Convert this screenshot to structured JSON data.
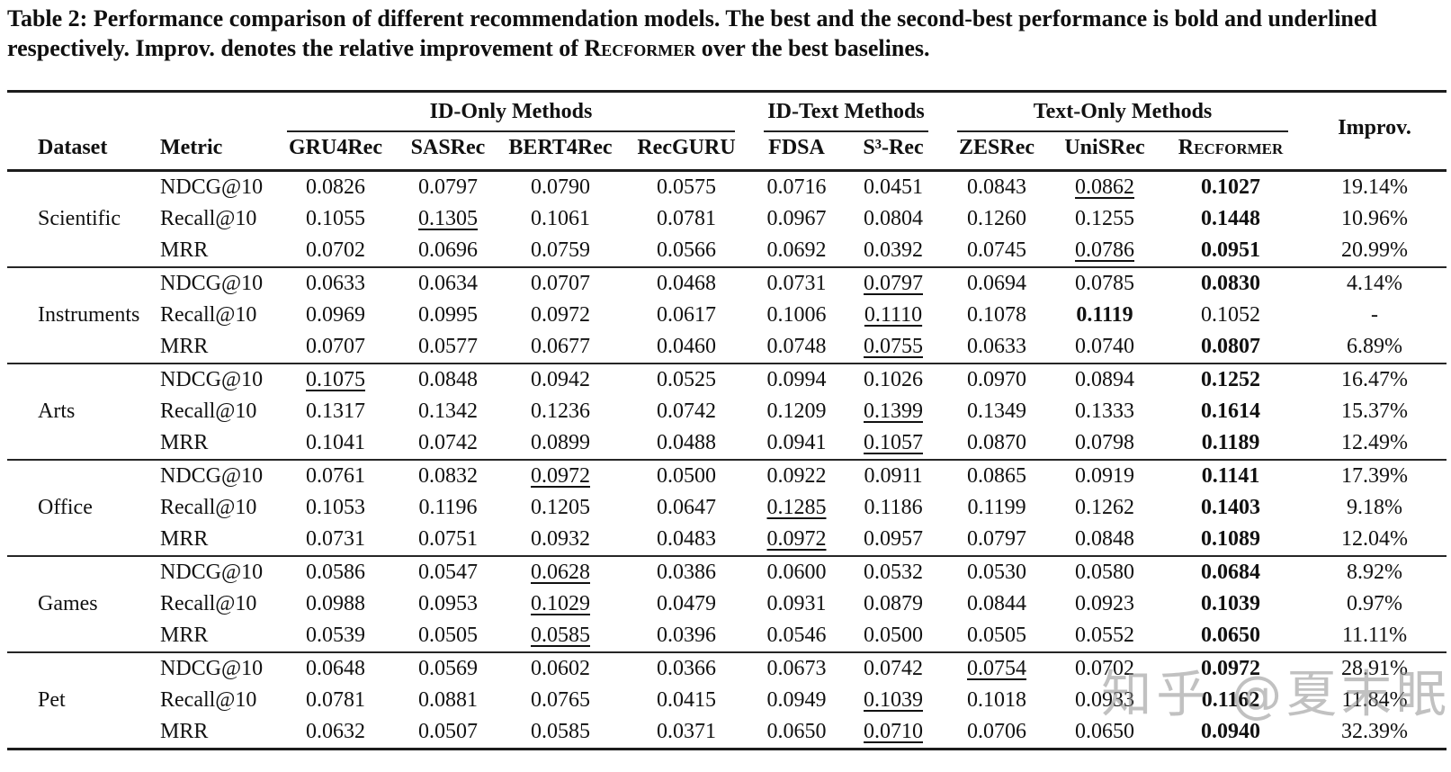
{
  "caption": {
    "prefix": "Table 2: Performance comparison of different recommendation models. The best and the second-best performance is bold and underlined respectively. Improv. denotes the relative improvement of ",
    "model_name": "Recformer",
    "suffix": " over the best baselines."
  },
  "watermark": "知乎 @夏末眠",
  "table": {
    "corner_headers": [
      "Dataset",
      "Metric"
    ],
    "groups": [
      {
        "label": "ID-Only Methods",
        "span": 4
      },
      {
        "label": "ID-Text Methods",
        "span": 2
      },
      {
        "label": "Text-Only Methods",
        "span": 3
      }
    ],
    "improv_header": "Improv.",
    "methods": [
      "GRU4Rec",
      "SASRec",
      "BERT4Rec",
      "RecGURU",
      "FDSA",
      "S³-Rec",
      "ZESRec",
      "UniSRec",
      "Recformer"
    ],
    "sections": [
      {
        "dataset": "Scientific",
        "rows": [
          {
            "metric": "NDCG@10",
            "values": [
              "0.0826",
              "0.0797",
              "0.0790",
              "0.0575",
              "0.0716",
              "0.0451",
              "0.0843",
              "0.0862",
              "0.1027"
            ],
            "improv": "19.14%",
            "best": 8,
            "second": 7
          },
          {
            "metric": "Recall@10",
            "values": [
              "0.1055",
              "0.1305",
              "0.1061",
              "0.0781",
              "0.0967",
              "0.0804",
              "0.1260",
              "0.1255",
              "0.1448"
            ],
            "improv": "10.96%",
            "best": 8,
            "second": 1
          },
          {
            "metric": "MRR",
            "values": [
              "0.0702",
              "0.0696",
              "0.0759",
              "0.0566",
              "0.0692",
              "0.0392",
              "0.0745",
              "0.0786",
              "0.0951"
            ],
            "improv": "20.99%",
            "best": 8,
            "second": 7
          }
        ]
      },
      {
        "dataset": "Instruments",
        "rows": [
          {
            "metric": "NDCG@10",
            "values": [
              "0.0633",
              "0.0634",
              "0.0707",
              "0.0468",
              "0.0731",
              "0.0797",
              "0.0694",
              "0.0785",
              "0.0830"
            ],
            "improv": "4.14%",
            "best": 8,
            "second": 5
          },
          {
            "metric": "Recall@10",
            "values": [
              "0.0969",
              "0.0995",
              "0.0972",
              "0.0617",
              "0.1006",
              "0.1110",
              "0.1078",
              "0.1119",
              "0.1052"
            ],
            "improv": "-",
            "best": 7,
            "second": 5
          },
          {
            "metric": "MRR",
            "values": [
              "0.0707",
              "0.0577",
              "0.0677",
              "0.0460",
              "0.0748",
              "0.0755",
              "0.0633",
              "0.0740",
              "0.0807"
            ],
            "improv": "6.89%",
            "best": 8,
            "second": 5
          }
        ]
      },
      {
        "dataset": "Arts",
        "rows": [
          {
            "metric": "NDCG@10",
            "values": [
              "0.1075",
              "0.0848",
              "0.0942",
              "0.0525",
              "0.0994",
              "0.1026",
              "0.0970",
              "0.0894",
              "0.1252"
            ],
            "improv": "16.47%",
            "best": 8,
            "second": 0
          },
          {
            "metric": "Recall@10",
            "values": [
              "0.1317",
              "0.1342",
              "0.1236",
              "0.0742",
              "0.1209",
              "0.1399",
              "0.1349",
              "0.1333",
              "0.1614"
            ],
            "improv": "15.37%",
            "best": 8,
            "second": 5
          },
          {
            "metric": "MRR",
            "values": [
              "0.1041",
              "0.0742",
              "0.0899",
              "0.0488",
              "0.0941",
              "0.1057",
              "0.0870",
              "0.0798",
              "0.1189"
            ],
            "improv": "12.49%",
            "best": 8,
            "second": 5
          }
        ]
      },
      {
        "dataset": "Office",
        "rows": [
          {
            "metric": "NDCG@10",
            "values": [
              "0.0761",
              "0.0832",
              "0.0972",
              "0.0500",
              "0.0922",
              "0.0911",
              "0.0865",
              "0.0919",
              "0.1141"
            ],
            "improv": "17.39%",
            "best": 8,
            "second": 2
          },
          {
            "metric": "Recall@10",
            "values": [
              "0.1053",
              "0.1196",
              "0.1205",
              "0.0647",
              "0.1285",
              "0.1186",
              "0.1199",
              "0.1262",
              "0.1403"
            ],
            "improv": "9.18%",
            "best": 8,
            "second": 4
          },
          {
            "metric": "MRR",
            "values": [
              "0.0731",
              "0.0751",
              "0.0932",
              "0.0483",
              "0.0972",
              "0.0957",
              "0.0797",
              "0.0848",
              "0.1089"
            ],
            "improv": "12.04%",
            "best": 8,
            "second": 4
          }
        ]
      },
      {
        "dataset": "Games",
        "rows": [
          {
            "metric": "NDCG@10",
            "values": [
              "0.0586",
              "0.0547",
              "0.0628",
              "0.0386",
              "0.0600",
              "0.0532",
              "0.0530",
              "0.0580",
              "0.0684"
            ],
            "improv": "8.92%",
            "best": 8,
            "second": 2
          },
          {
            "metric": "Recall@10",
            "values": [
              "0.0988",
              "0.0953",
              "0.1029",
              "0.0479",
              "0.0931",
              "0.0879",
              "0.0844",
              "0.0923",
              "0.1039"
            ],
            "improv": "0.97%",
            "best": 8,
            "second": 2
          },
          {
            "metric": "MRR",
            "values": [
              "0.0539",
              "0.0505",
              "0.0585",
              "0.0396",
              "0.0546",
              "0.0500",
              "0.0505",
              "0.0552",
              "0.0650"
            ],
            "improv": "11.11%",
            "best": 8,
            "second": 2
          }
        ]
      },
      {
        "dataset": "Pet",
        "rows": [
          {
            "metric": "NDCG@10",
            "values": [
              "0.0648",
              "0.0569",
              "0.0602",
              "0.0366",
              "0.0673",
              "0.0742",
              "0.0754",
              "0.0702",
              "0.0972"
            ],
            "improv": "28.91%",
            "best": 8,
            "second": 6
          },
          {
            "metric": "Recall@10",
            "values": [
              "0.0781",
              "0.0881",
              "0.0765",
              "0.0415",
              "0.0949",
              "0.1039",
              "0.1018",
              "0.0933",
              "0.1162"
            ],
            "improv": "11.84%",
            "best": 8,
            "second": 5
          },
          {
            "metric": "MRR",
            "values": [
              "0.0632",
              "0.0507",
              "0.0585",
              "0.0371",
              "0.0650",
              "0.0710",
              "0.0706",
              "0.0650",
              "0.0940"
            ],
            "improv": "32.39%",
            "best": 8,
            "second": 5
          }
        ]
      }
    ]
  }
}
